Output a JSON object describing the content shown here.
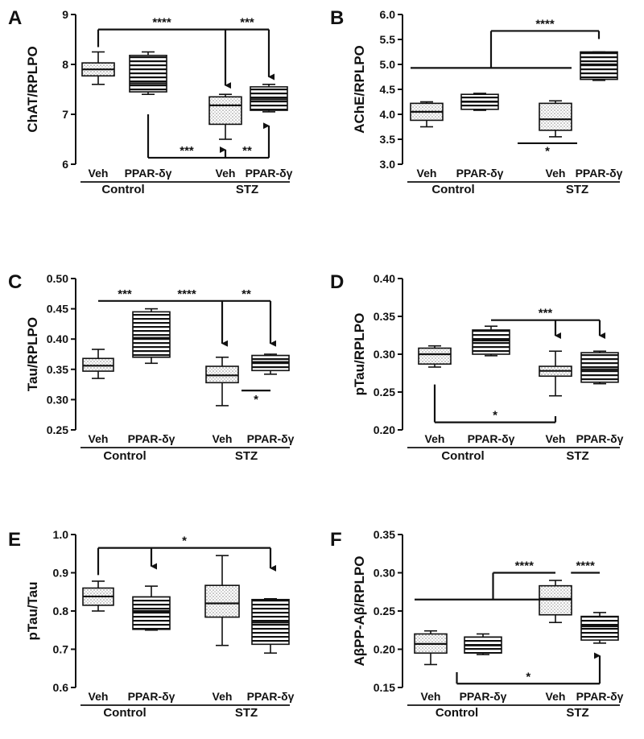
{
  "chart_data": [
    {
      "type": "box",
      "panel": "A",
      "ylabel": "ChAT/RPLPO",
      "ylim": [
        6,
        9
      ],
      "yticks": [
        6,
        7,
        8,
        9
      ],
      "tick_decimals": 0,
      "categories": [
        "Veh",
        "PPAR-δγ",
        "Veh",
        "PPAR-δγ"
      ],
      "groups": [
        {
          "label": "Control",
          "from": 0,
          "to": 1
        },
        {
          "label": "STZ",
          "from": 2,
          "to": 3
        }
      ],
      "boxes": [
        {
          "fill": "dots",
          "min": 7.6,
          "q1": 7.77,
          "median": 7.9,
          "q3": 8.03,
          "max": 8.25
        },
        {
          "fill": "lines",
          "min": 7.4,
          "q1": 7.45,
          "median": 7.62,
          "q3": 8.18,
          "max": 8.25
        },
        {
          "fill": "dots",
          "min": 6.5,
          "q1": 6.8,
          "median": 7.18,
          "q3": 7.35,
          "max": 7.4
        },
        {
          "fill": "lines",
          "min": 7.05,
          "q1": 7.08,
          "median": 7.3,
          "q3": 7.55,
          "max": 7.6
        }
      ],
      "annotations": [
        {
          "kind": "top",
          "label": "****",
          "from": 0,
          "to": 2,
          "y": 8.7,
          "arrow_to": 2,
          "arrow_y": 7.45
        },
        {
          "kind": "top",
          "label": "***",
          "from": 2,
          "to": 3,
          "y": 8.7,
          "arrow_to": 3,
          "arrow_y": 7.62
        },
        {
          "kind": "bottom",
          "label": "***",
          "from": 1,
          "to": 2,
          "y": 6.13,
          "start_y": 7.0,
          "arrow_to": 2,
          "arrow_y": 6.42
        },
        {
          "kind": "bottom",
          "label": "**",
          "from": 2,
          "to": 3,
          "y": 6.13,
          "arrow_to": 3,
          "arrow_y": 6.9
        }
      ]
    },
    {
      "type": "box",
      "panel": "B",
      "ylabel": "AChE/RPLPO",
      "ylim": [
        3.0,
        6.0
      ],
      "yticks": [
        3.0,
        3.5,
        4.0,
        4.5,
        5.0,
        5.5,
        6.0
      ],
      "tick_decimals": 1,
      "categories": [
        "Veh",
        "PPAR-δγ",
        "Veh",
        "PPAR-δγ"
      ],
      "groups": [
        {
          "label": "Control",
          "from": 0,
          "to": 1
        },
        {
          "label": "STZ",
          "from": 2,
          "to": 3
        }
      ],
      "boxes": [
        {
          "fill": "dots",
          "min": 3.75,
          "q1": 3.88,
          "median": 4.05,
          "q3": 4.22,
          "max": 4.25
        },
        {
          "fill": "lines",
          "min": 4.08,
          "q1": 4.1,
          "median": 4.25,
          "q3": 4.4,
          "max": 4.42
        },
        {
          "fill": "dots",
          "min": 3.55,
          "q1": 3.68,
          "median": 3.9,
          "q3": 4.22,
          "max": 4.27
        },
        {
          "fill": "lines",
          "min": 4.68,
          "q1": 4.7,
          "median": 5.0,
          "q3": 5.25,
          "max": 5.25
        }
      ],
      "annotations": [
        {
          "kind": "bracket",
          "label": "****",
          "from": 0,
          "to": 2,
          "y": 4.93,
          "stem_y": 5.67,
          "end": 3
        },
        {
          "kind": "line",
          "label": "*",
          "from": 1.5,
          "to": 2.5,
          "y": 3.42,
          "label_y": 3.28
        }
      ]
    },
    {
      "type": "box",
      "panel": "C",
      "ylabel": "Tau/RPLPO",
      "ylim": [
        0.25,
        0.5
      ],
      "yticks": [
        0.25,
        0.3,
        0.35,
        0.4,
        0.45,
        0.5
      ],
      "tick_decimals": 2,
      "categories": [
        "Veh",
        "PPAR-δγ",
        "Veh",
        "PPAR-δγ"
      ],
      "groups": [
        {
          "label": "Control",
          "from": 0,
          "to": 1
        },
        {
          "label": "STZ",
          "from": 2,
          "to": 3
        }
      ],
      "boxes": [
        {
          "fill": "dots",
          "min": 0.335,
          "q1": 0.347,
          "median": 0.356,
          "q3": 0.368,
          "max": 0.383
        },
        {
          "fill": "lines",
          "min": 0.36,
          "q1": 0.37,
          "median": 0.402,
          "q3": 0.445,
          "max": 0.45
        },
        {
          "fill": "dots",
          "min": 0.29,
          "q1": 0.328,
          "median": 0.34,
          "q3": 0.355,
          "max": 0.37
        },
        {
          "fill": "lines",
          "min": 0.342,
          "q1": 0.348,
          "median": 0.362,
          "q3": 0.373,
          "max": 0.375
        }
      ],
      "annotations": [
        {
          "kind": "line",
          "label": "***",
          "from": 0,
          "to": 1,
          "y": 0.463
        },
        {
          "kind": "top",
          "label": "****",
          "from": 1,
          "to": 2,
          "y": 0.463,
          "arrow_to": 2,
          "arrow_y": 0.382
        },
        {
          "kind": "top",
          "label": "**",
          "from": 2,
          "to": 3,
          "y": 0.463,
          "arrow_to": 3,
          "arrow_y": 0.382
        },
        {
          "kind": "line",
          "label": "*",
          "from": 2.4,
          "to": 3.0,
          "y": 0.315,
          "label_y": 0.302
        }
      ]
    },
    {
      "type": "box",
      "panel": "D",
      "ylabel": "pTau/RPLPO",
      "ylim": [
        0.2,
        0.4
      ],
      "yticks": [
        0.2,
        0.25,
        0.3,
        0.35,
        0.4
      ],
      "tick_decimals": 2,
      "categories": [
        "Veh",
        "PPAR-δγ",
        "Veh",
        "PPAR-δγ"
      ],
      "groups": [
        {
          "label": "Control",
          "from": 0,
          "to": 1
        },
        {
          "label": "STZ",
          "from": 2,
          "to": 3
        }
      ],
      "boxes": [
        {
          "fill": "dots",
          "min": 0.283,
          "q1": 0.287,
          "median": 0.3,
          "q3": 0.308,
          "max": 0.311
        },
        {
          "fill": "lines",
          "min": 0.298,
          "q1": 0.3,
          "median": 0.318,
          "q3": 0.332,
          "max": 0.337
        },
        {
          "fill": "dots",
          "min": 0.245,
          "q1": 0.271,
          "median": 0.278,
          "q3": 0.284,
          "max": 0.304
        },
        {
          "fill": "lines",
          "min": 0.261,
          "q1": 0.263,
          "median": 0.28,
          "q3": 0.302,
          "max": 0.304
        }
      ],
      "annotations": [
        {
          "kind": "top",
          "label": "***",
          "from": 1,
          "to": 3,
          "y": 0.345,
          "arrow_to": 2,
          "arrow_y": 0.316,
          "arrow_to2": 3,
          "arrow_y2": 0.316
        },
        {
          "kind": "bottom",
          "label": "*",
          "from": 0,
          "to": 2,
          "y": 0.21,
          "start_y": 0.26,
          "end_y": 0.216
        }
      ]
    },
    {
      "type": "box",
      "panel": "E",
      "ylabel": "pTau/Tau",
      "ylim": [
        0.6,
        1.0
      ],
      "yticks": [
        0.6,
        0.7,
        0.8,
        0.9,
        1.0
      ],
      "tick_decimals": 1,
      "categories": [
        "Veh",
        "PPAR-δγ",
        "Veh",
        "PPAR-δγ"
      ],
      "groups": [
        {
          "label": "Control",
          "from": 0,
          "to": 1
        },
        {
          "label": "STZ",
          "from": 2,
          "to": 3
        }
      ],
      "boxes": [
        {
          "fill": "dots",
          "min": 0.8,
          "q1": 0.815,
          "median": 0.838,
          "q3": 0.86,
          "max": 0.878
        },
        {
          "fill": "lines",
          "min": 0.75,
          "q1": 0.752,
          "median": 0.8,
          "q3": 0.837,
          "max": 0.865
        },
        {
          "fill": "dots",
          "min": 0.71,
          "q1": 0.784,
          "median": 0.82,
          "q3": 0.867,
          "max": 0.945
        },
        {
          "fill": "lines",
          "min": 0.69,
          "q1": 0.713,
          "median": 0.77,
          "q3": 0.83,
          "max": 0.832
        }
      ],
      "annotations": [
        {
          "kind": "top",
          "label": "*",
          "from": 0,
          "to": 3,
          "y": 0.965,
          "stem_from": 0,
          "arrow_to": 1,
          "arrow_y": 0.9,
          "arrow_to2": 3,
          "arrow_y2": 0.895
        }
      ]
    },
    {
      "type": "box",
      "panel": "F",
      "ylabel": "AβPP-Aβ/RPLPO",
      "ylim": [
        0.15,
        0.35
      ],
      "yticks": [
        0.15,
        0.2,
        0.25,
        0.3,
        0.35
      ],
      "tick_decimals": 2,
      "categories": [
        "Veh",
        "PPAR-δγ",
        "Veh",
        "PPAR-δγ"
      ],
      "groups": [
        {
          "label": "Control",
          "from": 0,
          "to": 1
        },
        {
          "label": "STZ",
          "from": 2,
          "to": 3
        }
      ],
      "boxes": [
        {
          "fill": "dots",
          "min": 0.18,
          "q1": 0.195,
          "median": 0.207,
          "q3": 0.22,
          "max": 0.224
        },
        {
          "fill": "lines",
          "min": 0.193,
          "q1": 0.195,
          "median": 0.205,
          "q3": 0.216,
          "max": 0.22
        },
        {
          "fill": "dots",
          "min": 0.235,
          "q1": 0.245,
          "median": 0.266,
          "q3": 0.283,
          "max": 0.29
        },
        {
          "fill": "lines",
          "min": 0.208,
          "q1": 0.212,
          "median": 0.23,
          "q3": 0.243,
          "max": 0.248
        }
      ],
      "annotations": [
        {
          "kind": "bracket",
          "label": "****",
          "from": 0,
          "to": 2,
          "y": 0.265,
          "stem_y": 0.3,
          "end": 2,
          "end_y": 0.3
        },
        {
          "kind": "line",
          "label": "****",
          "from": 2.35,
          "to": 3,
          "y": 0.3
        },
        {
          "kind": "bottom",
          "label": "*",
          "from": 0.5,
          "to": 3,
          "y": 0.155,
          "start_y": 0.17,
          "arrow_to": 3,
          "arrow_y": 0.2
        }
      ]
    }
  ]
}
